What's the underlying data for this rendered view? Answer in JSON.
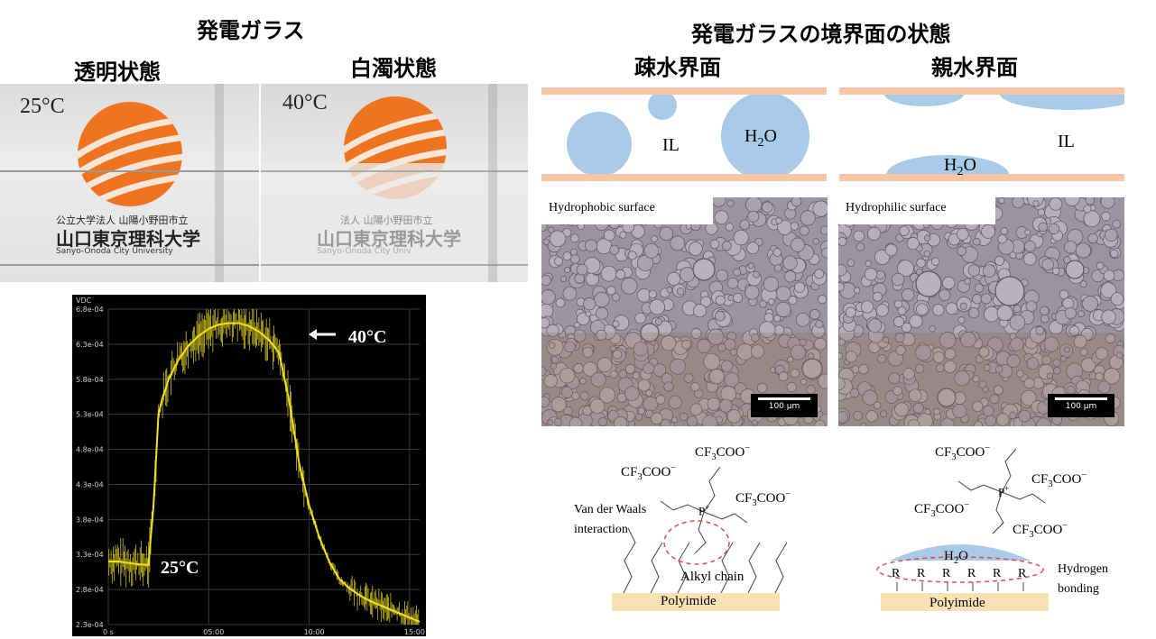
{
  "left": {
    "title": "発電ガラス",
    "states": {
      "transparent": "透明状態",
      "cloudy": "白濁状態"
    },
    "photo_temps": {
      "left": "25°C",
      "right": "40°C"
    },
    "logo_text": {
      "line1": "公立大学法人 山陽小野田市立",
      "line2": "山口東京理科大学",
      "line3": "Sanyo-Onoda City University",
      "line2_blurred": "山口東京理科大学",
      "line1_blurred": "法人 山陽小野田市立",
      "line3_blurred": "Sanyo-Onoda City Univ"
    }
  },
  "right": {
    "title": "発電ガラスの境界面の状態",
    "hydrophobic_title": "疎水界面",
    "hydrophilic_title": "親水界面",
    "il_label": "IL",
    "h2o_label": "H2O",
    "panel_hydrophobic": "Hydrophobic  surface",
    "panel_hydrophilic": "Hydrophilic  surface",
    "scale_label": "100 µm",
    "anion": "CF3COO-",
    "cation": "P+",
    "vdw_line1": "Van der Waals",
    "vdw_line2": "interaction",
    "alkyl": "Alkyl  chain",
    "polyimide": "Polyimide",
    "r_group": "R",
    "hbond_line1": "Hydrogen",
    "hbond_line2": "bonding"
  },
  "chart_data": {
    "type": "line",
    "ylabel": "VDC",
    "ylim": [
      0.00023,
      0.00068
    ],
    "yticks": [
      "6.8e-04",
      "6.3e-04",
      "5.8e-04",
      "5.3e-04",
      "4.8e-04",
      "4.3e-04",
      "3.8e-04",
      "3.3e-04",
      "2.8e-04",
      "2.3e-04"
    ],
    "xticks": [
      "0 s",
      "05:00",
      "10:00",
      "15:00"
    ],
    "annotations": [
      "40°C",
      "25°C"
    ],
    "series": [
      {
        "color": "#f0e020",
        "x": [
          0,
          30,
          60,
          90,
          120,
          135,
          150,
          160,
          180,
          210,
          240,
          270,
          300,
          330,
          360,
          390,
          420,
          450,
          480,
          510,
          540,
          570,
          600,
          630,
          660,
          690,
          720,
          750,
          780,
          810,
          840,
          870,
          900,
          930
        ],
        "y": [
          0.00032,
          0.00032,
          0.000318,
          0.000316,
          0.000315,
          0.0004,
          0.00053,
          0.00055,
          0.00058,
          0.000608,
          0.000628,
          0.000642,
          0.000652,
          0.000658,
          0.00066,
          0.00066,
          0.000656,
          0.000648,
          0.000636,
          0.000618,
          0.00055,
          0.00046,
          0.0004,
          0.000355,
          0.00032,
          0.000295,
          0.000282,
          0.000272,
          0.000264,
          0.000258,
          0.000252,
          0.000246,
          0.00024,
          0.000234
        ]
      }
    ]
  }
}
